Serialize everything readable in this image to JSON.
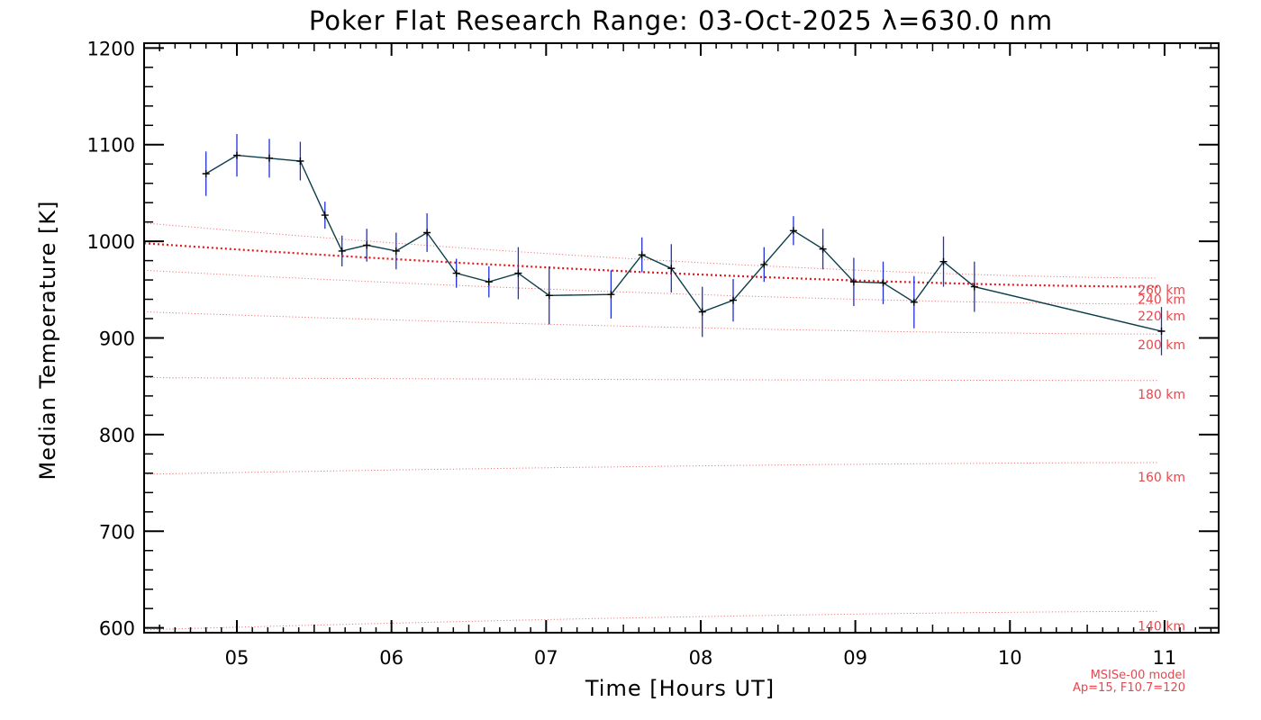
{
  "chart_data": {
    "type": "line",
    "title": "Poker Flat Research Range: 03-Oct-2025 λ=630.0 nm",
    "xlabel": "Time [Hours UT]",
    "ylabel": "Median Temperature [K]",
    "xlim": [
      4.4,
      11.35
    ],
    "ylim": [
      595,
      1205
    ],
    "x_ticks": [
      5,
      6,
      7,
      8,
      9,
      10,
      11
    ],
    "x_tick_labels": [
      "05",
      "06",
      "07",
      "08",
      "09",
      "10",
      "11"
    ],
    "y_ticks": [
      600,
      700,
      800,
      900,
      1000,
      1100,
      1200
    ],
    "y_tick_labels": [
      "600",
      "700",
      "800",
      "900",
      "1000",
      "1100",
      "1200"
    ],
    "grid": false,
    "series": [
      {
        "name": "Median Temperature",
        "color": "#0b3d4a",
        "marker": "+",
        "error_color": "#1f2fd6",
        "points": [
          {
            "x": 4.8,
            "y": 1070,
            "err": 23
          },
          {
            "x": 5.0,
            "y": 1089,
            "err": 22
          },
          {
            "x": 5.21,
            "y": 1086,
            "err": 20
          },
          {
            "x": 5.41,
            "y": 1083,
            "err": 20
          },
          {
            "x": 5.57,
            "y": 1027,
            "err": 14
          },
          {
            "x": 5.68,
            "y": 990,
            "err": 16
          },
          {
            "x": 5.84,
            "y": 996,
            "err": 17
          },
          {
            "x": 6.03,
            "y": 990,
            "err": 19
          },
          {
            "x": 6.23,
            "y": 1009,
            "err": 20
          },
          {
            "x": 6.42,
            "y": 967,
            "err": 15
          },
          {
            "x": 6.63,
            "y": 958,
            "err": 16
          },
          {
            "x": 6.82,
            "y": 967,
            "err": 27
          },
          {
            "x": 7.02,
            "y": 944,
            "err": 30
          },
          {
            "x": 7.42,
            "y": 945,
            "err": 25
          },
          {
            "x": 7.62,
            "y": 986,
            "err": 18
          },
          {
            "x": 7.81,
            "y": 972,
            "err": 25
          },
          {
            "x": 8.01,
            "y": 927,
            "err": 26
          },
          {
            "x": 8.21,
            "y": 939,
            "err": 22
          },
          {
            "x": 8.41,
            "y": 976,
            "err": 18
          },
          {
            "x": 8.6,
            "y": 1011,
            "err": 15
          },
          {
            "x": 8.79,
            "y": 992,
            "err": 21
          },
          {
            "x": 8.99,
            "y": 958,
            "err": 25
          },
          {
            "x": 9.18,
            "y": 957,
            "err": 22
          },
          {
            "x": 9.38,
            "y": 937,
            "err": 27
          },
          {
            "x": 9.57,
            "y": 979,
            "err": 26
          },
          {
            "x": 9.77,
            "y": 953,
            "err": 26
          },
          {
            "x": 10.98,
            "y": 907,
            "err": 25
          }
        ]
      }
    ],
    "model_curves": [
      {
        "label": "260 km",
        "style": "heavy",
        "y_start": 998,
        "y_end": 953
      },
      {
        "label": "240 km",
        "style": "light",
        "y_start": 1019,
        "y_end": 962
      },
      {
        "label": "220 km",
        "style": "light",
        "y_start": 970,
        "y_end": 935
      },
      {
        "label": "200 km",
        "style": "light",
        "y_start": 927,
        "y_end": 904
      },
      {
        "label": "180 km",
        "style": "light",
        "y_start": 859,
        "y_end": 856
      },
      {
        "label": "160 km",
        "style": "light",
        "y_start": 759,
        "y_end": 771
      },
      {
        "label": "140 km",
        "style": "light",
        "y_start": 598,
        "y_end": 617
      }
    ],
    "model_label_positions": [
      {
        "label": "260 km",
        "y": 950
      },
      {
        "label": "240 km",
        "y": 940
      },
      {
        "label": "220 km",
        "y": 923
      },
      {
        "label": "200 km",
        "y": 893
      },
      {
        "label": "180 km",
        "y": 842
      },
      {
        "label": "160 km",
        "y": 756
      },
      {
        "label": "140 km",
        "y": 602
      }
    ],
    "model_color": "#e8474d",
    "model_heavy_color": "#e4161c",
    "footer_notes": [
      "MSISe-00 model",
      "Ap=15, F10.7=120"
    ]
  }
}
